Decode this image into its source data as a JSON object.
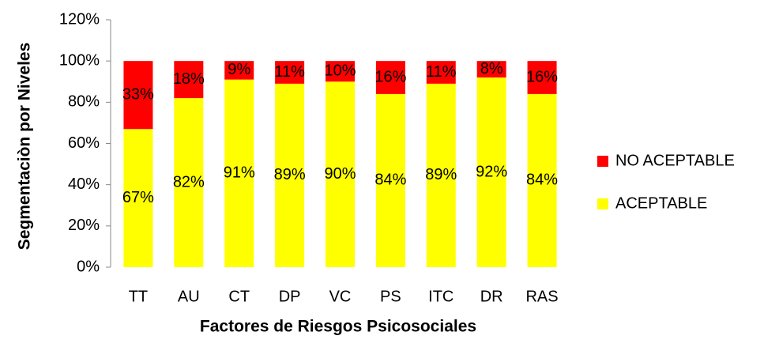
{
  "chart_data": {
    "type": "stacked_bar",
    "x_label": "Factores de Riesgos Psicosociales",
    "y_label": "Segmentaciòn por Niveles",
    "categories": [
      "TT",
      "AU",
      "CT",
      "DP",
      "VC",
      "PS",
      "ITC",
      "DR",
      "RAS"
    ],
    "series": [
      {
        "name": "ACEPTABLE",
        "color": "#ffff00",
        "values": [
          67,
          82,
          91,
          89,
          90,
          84,
          89,
          92,
          84
        ],
        "value_labels": [
          "67%",
          "82%",
          "91%",
          "89%",
          "90%",
          "84%",
          "89%",
          "92%",
          "84%"
        ]
      },
      {
        "name": "NO ACEPTABLE",
        "color": "#ff0000",
        "values": [
          33,
          18,
          9,
          11,
          10,
          16,
          11,
          8,
          16
        ],
        "value_labels": [
          "33%",
          "18%",
          "9%",
          "11%",
          "10%",
          "16%",
          "11%",
          "8%",
          "16%"
        ]
      }
    ],
    "ylim": [
      0,
      120
    ],
    "yticks": [
      {
        "value": 0,
        "label": "0%"
      },
      {
        "value": 20,
        "label": "20%"
      },
      {
        "value": 40,
        "label": "40%"
      },
      {
        "value": 60,
        "label": "60%"
      },
      {
        "value": 80,
        "label": "80%"
      },
      {
        "value": 100,
        "label": "100%"
      },
      {
        "value": 120,
        "label": "120%"
      }
    ],
    "legend": "right"
  }
}
